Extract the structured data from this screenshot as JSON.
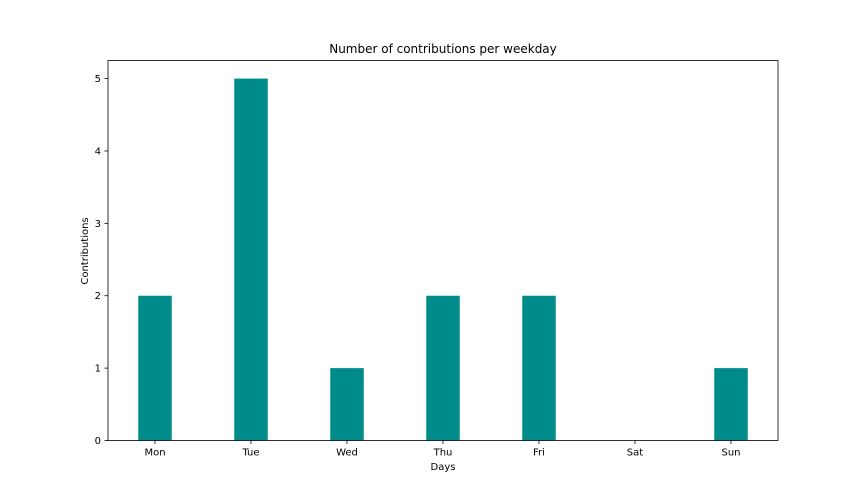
{
  "chart_data": {
    "type": "bar",
    "title": "Number of contributions per weekday",
    "xlabel": "Days",
    "ylabel": "Contributions",
    "categories": [
      "Mon",
      "Tue",
      "Wed",
      "Thu",
      "Fri",
      "Sat",
      "Sun"
    ],
    "values": [
      2,
      5,
      1,
      2,
      2,
      0,
      1
    ],
    "ylim": [
      0,
      5.25
    ],
    "yticks": [
      0,
      1,
      2,
      3,
      4,
      5
    ],
    "bar_color": "#008b8b",
    "grid": false,
    "legend": "none"
  }
}
